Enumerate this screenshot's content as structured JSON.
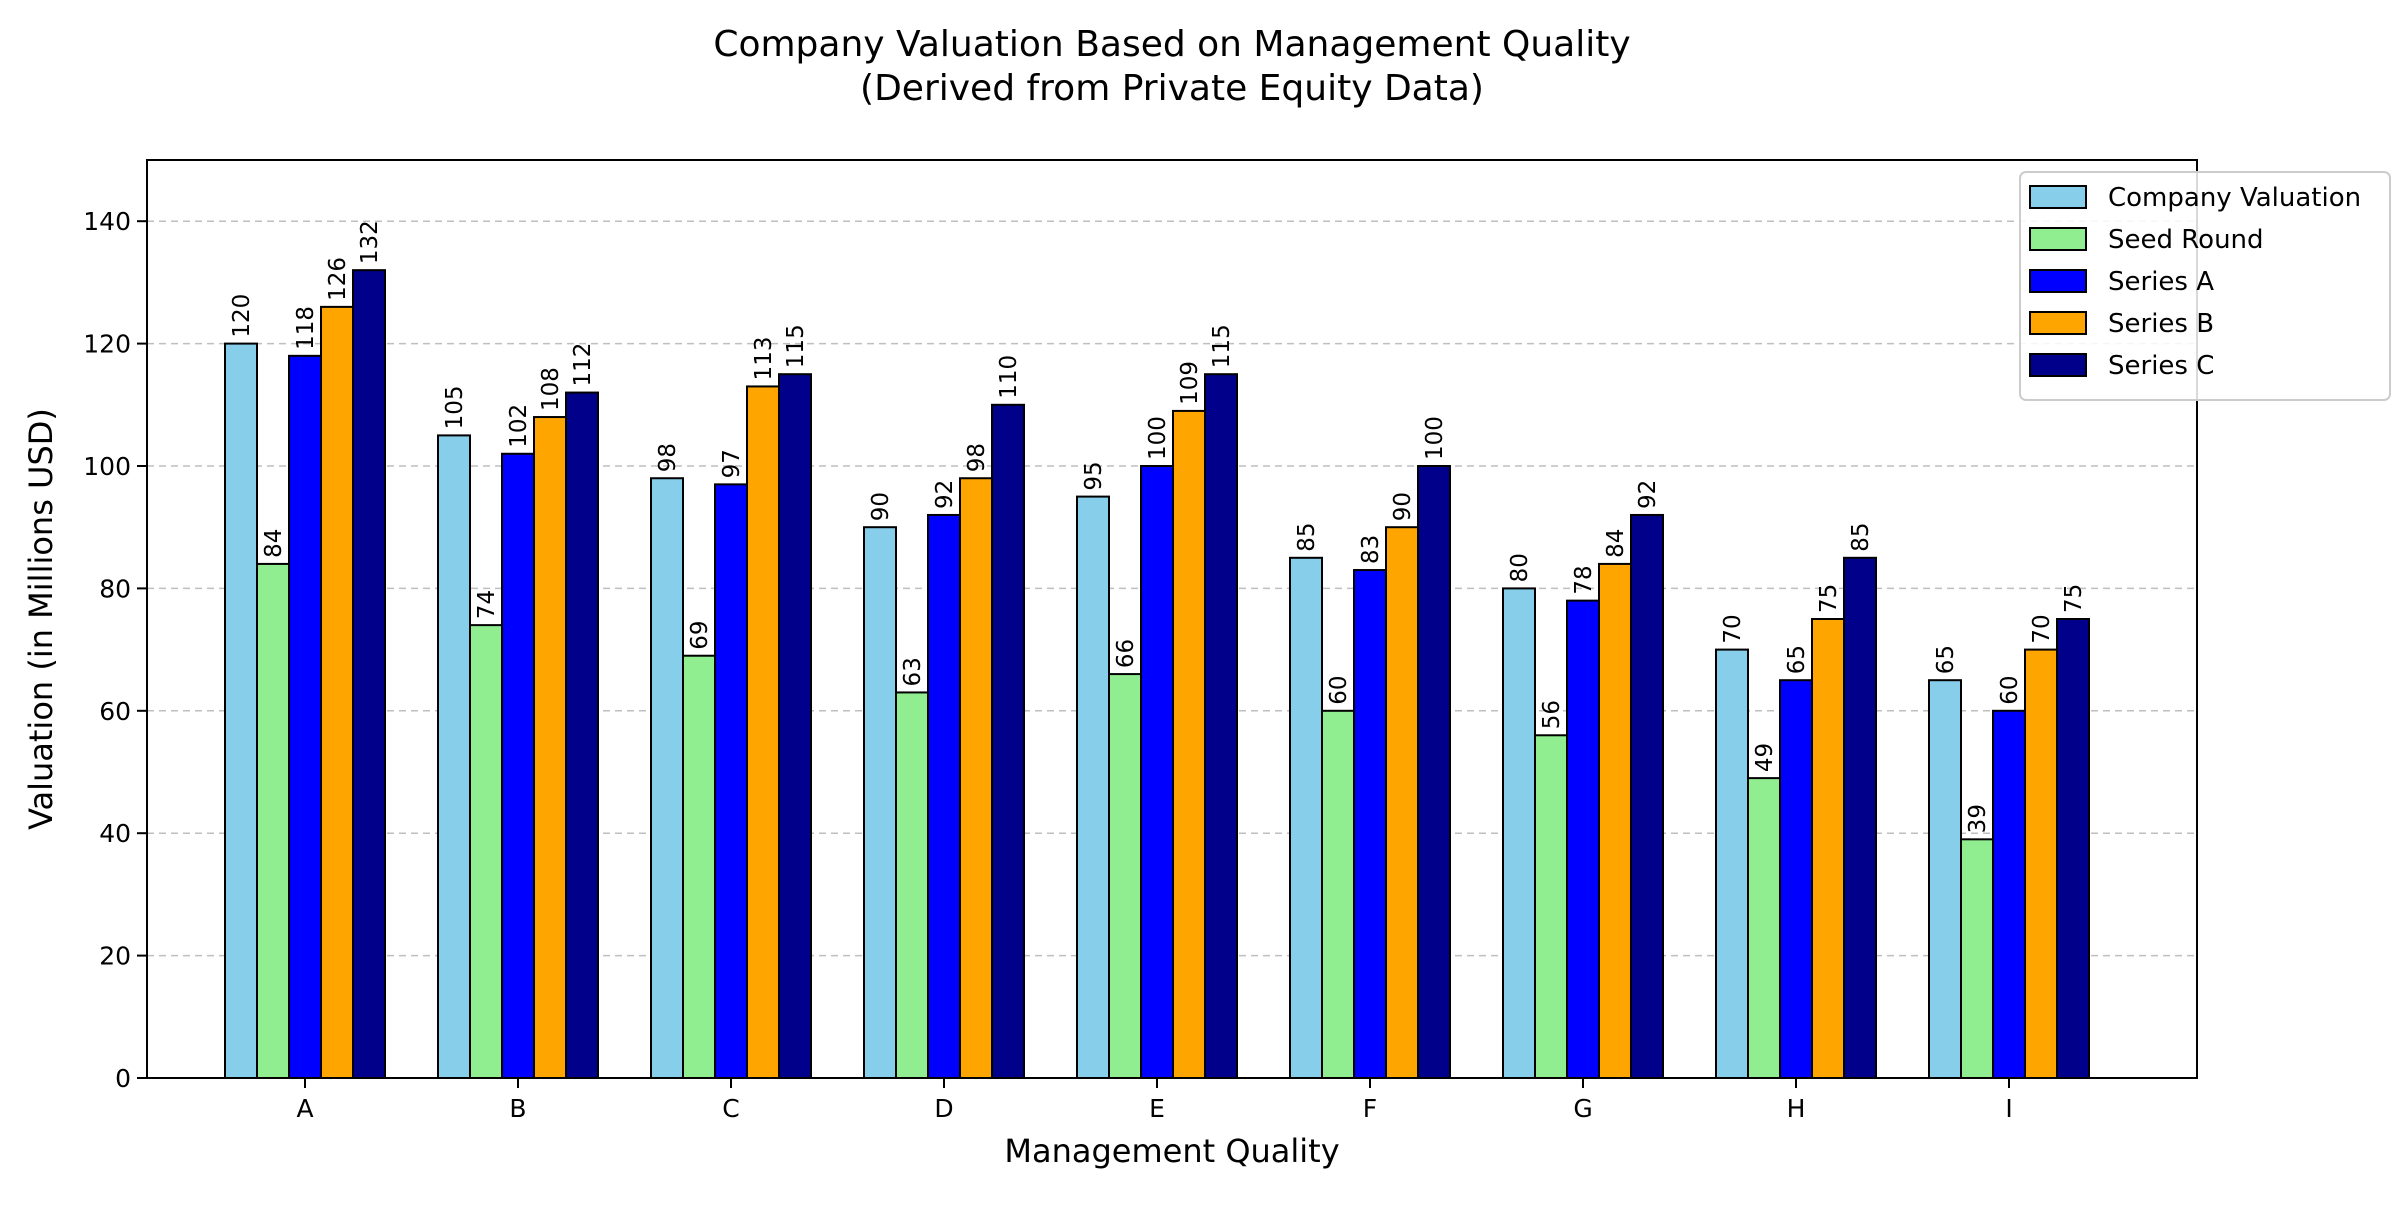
{
  "chart_data": {
    "type": "bar",
    "title": "Company Valuation Based on Management Quality",
    "subtitle": "(Derived from Private Equity Data)",
    "xlabel": "Management Quality",
    "ylabel": "Valuation (in Millions USD)",
    "categories": [
      "A",
      "B",
      "C",
      "D",
      "E",
      "F",
      "G",
      "H",
      "I"
    ],
    "ylim": [
      0,
      150
    ],
    "yticks": [
      0,
      20,
      40,
      60,
      80,
      100,
      120,
      140
    ],
    "grid": "y-dashed",
    "legend_position": "top-right",
    "series": [
      {
        "name": "Company Valuation",
        "color": "#87ceeb",
        "values": [
          120,
          105,
          98,
          90,
          95,
          85,
          80,
          70,
          65
        ]
      },
      {
        "name": "Seed Round",
        "color": "#90ee90",
        "values": [
          84,
          74,
          69,
          63,
          66,
          60,
          56,
          49,
          39
        ]
      },
      {
        "name": "Series A",
        "color": "#0000ff",
        "values": [
          118,
          102,
          97,
          92,
          100,
          83,
          78,
          65,
          60
        ]
      },
      {
        "name": "Series B",
        "color": "#ffa500",
        "values": [
          126,
          108,
          113,
          98,
          109,
          90,
          84,
          75,
          70
        ]
      },
      {
        "name": "Series C",
        "color": "#00008b",
        "values": [
          132,
          112,
          115,
          110,
          115,
          100,
          92,
          85,
          75
        ]
      }
    ]
  }
}
